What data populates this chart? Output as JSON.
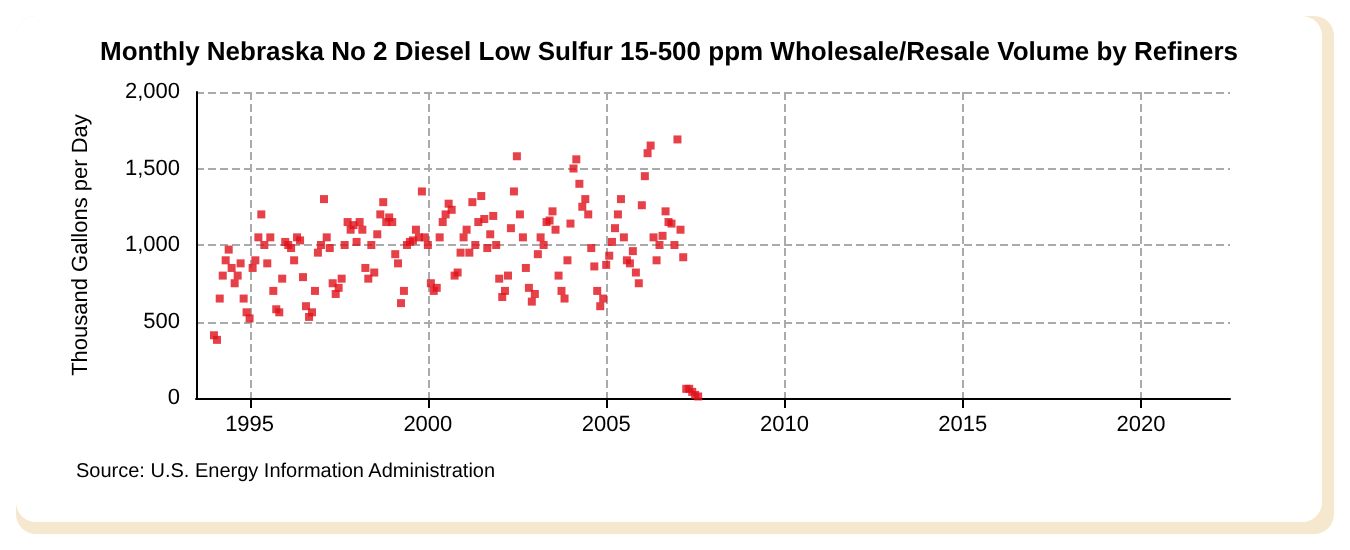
{
  "chart_data": {
    "type": "scatter",
    "title": "Monthly Nebraska No 2 Diesel Low Sulfur 15-500 ppm Wholesale/Resale Volume by Refiners",
    "ylabel": "Thousand Gallons per Day",
    "annotations": [
      "Source: U.S. Energy Information Administration"
    ],
    "x": [
      "1994-01",
      "1994-02",
      "1994-03",
      "1994-04",
      "1994-05",
      "1994-06",
      "1994-07",
      "1994-08",
      "1994-09",
      "1994-10",
      "1994-11",
      "1994-12",
      "1995-01",
      "1995-02",
      "1995-03",
      "1995-04",
      "1995-05",
      "1995-06",
      "1995-07",
      "1995-08",
      "1995-09",
      "1995-10",
      "1995-11",
      "1995-12",
      "1996-01",
      "1996-02",
      "1996-03",
      "1996-04",
      "1996-05",
      "1996-06",
      "1996-07",
      "1996-08",
      "1996-09",
      "1996-10",
      "1996-11",
      "1996-12",
      "1997-01",
      "1997-02",
      "1997-03",
      "1997-04",
      "1997-05",
      "1997-06",
      "1997-07",
      "1997-08",
      "1997-09",
      "1997-10",
      "1997-11",
      "1997-12",
      "1998-01",
      "1998-02",
      "1998-03",
      "1998-04",
      "1998-05",
      "1998-06",
      "1998-07",
      "1998-08",
      "1998-09",
      "1998-10",
      "1998-11",
      "1998-12",
      "1999-01",
      "1999-02",
      "1999-03",
      "1999-04",
      "1999-05",
      "1999-06",
      "1999-07",
      "1999-08",
      "1999-09",
      "1999-10",
      "1999-11",
      "1999-12",
      "2000-01",
      "2000-02",
      "2000-03",
      "2000-04",
      "2000-05",
      "2000-06",
      "2000-07",
      "2000-08",
      "2000-09",
      "2000-10",
      "2000-11",
      "2000-12",
      "2001-01",
      "2001-02",
      "2001-03",
      "2001-04",
      "2001-05",
      "2001-06",
      "2001-07",
      "2001-08",
      "2001-09",
      "2001-10",
      "2001-11",
      "2001-12",
      "2002-01",
      "2002-02",
      "2002-03",
      "2002-04",
      "2002-05",
      "2002-06",
      "2002-07",
      "2002-08",
      "2002-09",
      "2002-10",
      "2002-11",
      "2002-12",
      "2003-01",
      "2003-02",
      "2003-03",
      "2003-04",
      "2003-05",
      "2003-06",
      "2003-07",
      "2003-08",
      "2003-09",
      "2003-10",
      "2003-11",
      "2003-12",
      "2004-01",
      "2004-02",
      "2004-03",
      "2004-04",
      "2004-05",
      "2004-06",
      "2004-07",
      "2004-08",
      "2004-09",
      "2004-10",
      "2004-11",
      "2004-12",
      "2005-01",
      "2005-02",
      "2005-03",
      "2005-04",
      "2005-05",
      "2005-06",
      "2005-07",
      "2005-08",
      "2005-09",
      "2005-10",
      "2005-11",
      "2005-12",
      "2006-01",
      "2006-02",
      "2006-03",
      "2006-04",
      "2006-05",
      "2006-06",
      "2006-07",
      "2006-08",
      "2006-09",
      "2006-10",
      "2006-11",
      "2006-12",
      "2007-01",
      "2007-02",
      "2007-03",
      "2007-04",
      "2007-05",
      "2007-06",
      "2007-07",
      "2007-08"
    ],
    "series": [
      {
        "color": "#e0101a",
        "values": [
          410,
          380,
          650,
          800,
          900,
          970,
          850,
          750,
          800,
          880,
          650,
          560,
          520,
          850,
          900,
          1050,
          1200,
          1000,
          880,
          1050,
          700,
          580,
          560,
          780,
          1020,
          1000,
          980,
          900,
          1050,
          1030,
          790,
          600,
          530,
          560,
          700,
          950,
          1000,
          1300,
          1050,
          980,
          750,
          680,
          720,
          780,
          1000,
          1150,
          1100,
          1130,
          1020,
          1150,
          1100,
          850,
          780,
          1000,
          820,
          1070,
          1200,
          1280,
          1150,
          1180,
          1150,
          940,
          880,
          620,
          700,
          1000,
          1020,
          1030,
          1100,
          1050,
          1350,
          1050,
          1000,
          750,
          700,
          720,
          1050,
          1150,
          1200,
          1270,
          1230,
          800,
          820,
          950,
          1050,
          1100,
          950,
          1280,
          1000,
          1150,
          1320,
          1170,
          980,
          1070,
          1190,
          1000,
          780,
          660,
          700,
          800,
          1110,
          1350,
          1580,
          1200,
          1050,
          850,
          720,
          630,
          680,
          940,
          1050,
          1000,
          1150,
          1160,
          1220,
          1100,
          800,
          700,
          650,
          900,
          1140,
          1500,
          1560,
          1400,
          1250,
          1300,
          1200,
          980,
          860,
          700,
          600,
          650,
          870,
          930,
          1020,
          1110,
          1200,
          1300,
          1050,
          900,
          880,
          960,
          820,
          750,
          1260,
          1450,
          1600,
          1650,
          1050,
          900,
          1000,
          1060,
          1220,
          1150,
          1140,
          1000,
          1690,
          1100,
          920,
          60,
          60,
          40,
          20,
          10
        ]
      }
    ],
    "xlim": [
      "1993-07",
      "2022-07"
    ],
    "xticks": [
      "1995",
      "2000",
      "2005",
      "2010",
      "2015",
      "2020"
    ],
    "ylim": [
      0,
      2000
    ],
    "yticks": [
      0,
      {
        "value": 500,
        "label": "500"
      },
      {
        "value": 1000,
        "label": "1,000"
      },
      {
        "value": 1500,
        "label": "1,500"
      },
      {
        "value": 2000,
        "label": "2,000"
      }
    ],
    "grid": true,
    "marker": "square"
  }
}
